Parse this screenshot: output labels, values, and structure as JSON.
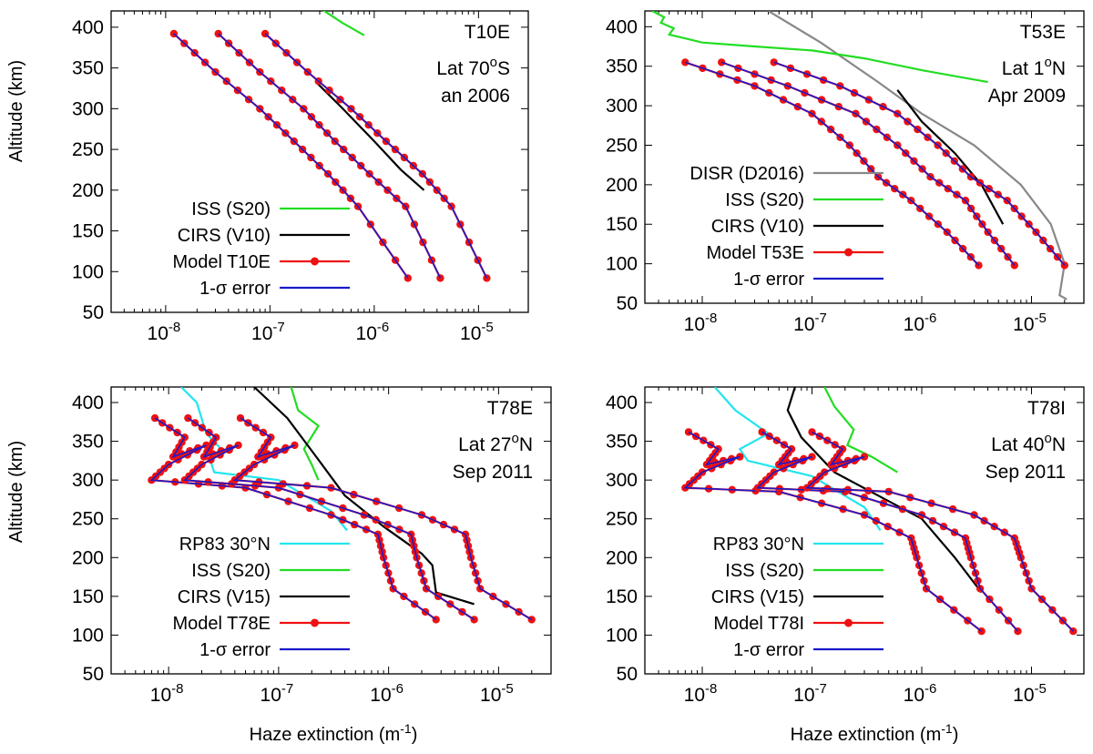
{
  "figure": {
    "ylabel": "Altitude (km)",
    "xlabel_main": "Haze extinction (m",
    "xlabel_sup": "-1",
    "xlabel_close": ")"
  },
  "colors": {
    "ISS": "#22dd22",
    "CIRS": "#000000",
    "DISR": "#888888",
    "RP83": "#22e5ee",
    "model": "#ee1111",
    "error": "#1a1acc"
  },
  "chart_data": [
    {
      "type": "line",
      "panel": "T10E",
      "title": "T10E",
      "annotation_lines": [
        {
          "main": "Lat 70",
          "sup": "o",
          "rest": "S"
        },
        {
          "main": "an 2006",
          "sup": "",
          "rest": ""
        }
      ],
      "xlabel": "",
      "ylabel": "Altitude (km)",
      "xscale": "log",
      "xlim": [
        3e-09,
        3e-05
      ],
      "ylim": [
        50,
        420
      ],
      "xticks": [
        {
          "base": "10",
          "exp": "-8"
        },
        {
          "base": "10",
          "exp": "-7"
        },
        {
          "base": "10",
          "exp": "-6"
        },
        {
          "base": "10",
          "exp": "-5"
        }
      ],
      "yticks": [
        "50",
        "100",
        "150",
        "200",
        "250",
        "300",
        "350",
        "400"
      ],
      "legend_position": "bottom-left",
      "legend": [
        {
          "label": "ISS (S20)",
          "color": "ISS",
          "marker": false
        },
        {
          "label": "CIRS (V10)",
          "color": "CIRS",
          "marker": false
        },
        {
          "label": "Model T10E",
          "color": "model",
          "marker": true
        },
        {
          "label": "1-σ error",
          "color": "error",
          "marker": false
        }
      ],
      "series": [
        {
          "color": "ISS",
          "kind": "line",
          "x": [
            2.9e-07,
            3.5e-07,
            5e-07,
            8e-07
          ],
          "y": [
            425,
            418,
            405,
            390
          ]
        },
        {
          "color": "CIRS",
          "kind": "line",
          "x": [
            2.8e-07,
            5e-07,
            1e-06,
            1.8e-06,
            3e-06
          ],
          "y": [
            332,
            300,
            260,
            225,
            200
          ]
        },
        {
          "color": "model",
          "kind": "model",
          "x": [
            1.2e-08,
            3e-08,
            8e-08,
            1.7e-07,
            3.6e-07,
            7e-07,
            2.1e-06
          ],
          "y": [
            392,
            345,
            300,
            260,
            220,
            180,
            92
          ]
        },
        {
          "color": "model",
          "kind": "model",
          "x": [
            3.2e-08,
            8e-08,
            2.1e-07,
            4.2e-07,
            9e-07,
            2e-06,
            4.3e-06
          ],
          "y": [
            392,
            345,
            300,
            260,
            220,
            180,
            92
          ]
        },
        {
          "color": "model",
          "kind": "model",
          "x": [
            9e-08,
            2.3e-07,
            6e-07,
            1.3e-06,
            2.9e-06,
            5.5e-06,
            1.2e-05
          ],
          "y": [
            392,
            345,
            300,
            260,
            220,
            180,
            92
          ]
        }
      ]
    },
    {
      "type": "line",
      "panel": "T53E",
      "title": "T53E",
      "annotation_lines": [
        {
          "main": "Lat 1",
          "sup": "o",
          "rest": "N"
        },
        {
          "main": "Apr 2009",
          "sup": "",
          "rest": ""
        }
      ],
      "xlabel": "",
      "ylabel": "",
      "xscale": "log",
      "xlim": [
        3e-09,
        3e-05
      ],
      "ylim": [
        50,
        420
      ],
      "xticks": [
        {
          "base": "10",
          "exp": "-8"
        },
        {
          "base": "10",
          "exp": "-7"
        },
        {
          "base": "10",
          "exp": "-6"
        },
        {
          "base": "10",
          "exp": "-5"
        }
      ],
      "yticks": [
        "50",
        "100",
        "150",
        "200",
        "250",
        "300",
        "350",
        "400"
      ],
      "legend_position": "bottom-left",
      "legend": [
        {
          "label": "DISR (D2016)",
          "color": "DISR",
          "marker": false
        },
        {
          "label": "ISS (S20)",
          "color": "ISS",
          "marker": false
        },
        {
          "label": "CIRS (V10)",
          "color": "CIRS",
          "marker": false
        },
        {
          "label": "Model T53E",
          "color": "model",
          "marker": true
        },
        {
          "label": "1-σ error",
          "color": "error",
          "marker": false
        }
      ],
      "series": [
        {
          "color": "DISR",
          "kind": "line",
          "x": [
            4e-08,
            1.2e-07,
            4e-07,
            1e-06,
            3e-06,
            8e-06,
            1.5e-05,
            2e-05,
            1.8e-05,
            2.1e-05
          ],
          "y": [
            420,
            380,
            330,
            290,
            250,
            200,
            150,
            100,
            60,
            55
          ]
        },
        {
          "color": "ISS",
          "kind": "line",
          "x": [
            3.5e-09,
            4.5e-09,
            4.2e-09,
            5.5e-09,
            5e-09,
            1e-08,
            3e-08,
            1e-07,
            3e-07,
            1e-06,
            4e-06
          ],
          "y": [
            420,
            412,
            405,
            398,
            390,
            380,
            375,
            370,
            360,
            345,
            330
          ]
        },
        {
          "color": "CIRS",
          "kind": "line",
          "x": [
            6e-07,
            1e-06,
            2e-06,
            3.5e-06,
            5.5e-06
          ],
          "y": [
            320,
            280,
            240,
            200,
            150
          ]
        },
        {
          "color": "model",
          "kind": "model",
          "x": [
            7e-09,
            3e-08,
            1e-07,
            2.2e-07,
            4e-07,
            8e-07,
            1.7e-06,
            3.3e-06
          ],
          "y": [
            355,
            325,
            290,
            250,
            210,
            180,
            140,
            98
          ]
        },
        {
          "color": "model",
          "kind": "model",
          "x": [
            1.5e-08,
            6e-08,
            2.5e-07,
            6e-07,
            1.2e-06,
            2.5e-06,
            4e-06,
            7e-06
          ],
          "y": [
            355,
            325,
            290,
            250,
            210,
            180,
            140,
            98
          ]
        },
        {
          "color": "model",
          "kind": "model",
          "x": [
            4.5e-08,
            1.8e-07,
            6e-07,
            1.4e-06,
            2.8e-06,
            6e-06,
            1.1e-05,
            2e-05
          ],
          "y": [
            355,
            325,
            290,
            250,
            210,
            180,
            140,
            98
          ]
        }
      ]
    },
    {
      "type": "line",
      "panel": "T78E",
      "title": "T78E",
      "annotation_lines": [
        {
          "main": "Lat 27",
          "sup": "o",
          "rest": "N"
        },
        {
          "main": "Sep 2011",
          "sup": "",
          "rest": ""
        }
      ],
      "xlabel": "Haze extinction (m-1)",
      "ylabel": "Altitude (km)",
      "xscale": "log",
      "xlim": [
        3e-09,
        3e-05
      ],
      "ylim": [
        50,
        420
      ],
      "xticks": [
        {
          "base": "10",
          "exp": "-8"
        },
        {
          "base": "10",
          "exp": "-7"
        },
        {
          "base": "10",
          "exp": "-6"
        },
        {
          "base": "10",
          "exp": "-5"
        }
      ],
      "yticks": [
        "50",
        "100",
        "150",
        "200",
        "250",
        "300",
        "350",
        "400"
      ],
      "legend_position": "bottom-left",
      "legend": [
        {
          "label": "RP83 30°N",
          "color": "RP83",
          "marker": false
        },
        {
          "label": "ISS (S20)",
          "color": "ISS",
          "marker": false
        },
        {
          "label": "CIRS (V15)",
          "color": "CIRS",
          "marker": false
        },
        {
          "label": "Model T78E",
          "color": "model",
          "marker": true
        },
        {
          "label": "1-σ error",
          "color": "error",
          "marker": false
        }
      ],
      "series": [
        {
          "color": "RP83",
          "kind": "line",
          "x": [
            1.3e-08,
            1.8e-08,
            2.2e-08,
            3e-08,
            2.4e-08,
            2.6e-08,
            1e-07,
            3e-07,
            4.2e-07
          ],
          "y": [
            420,
            400,
            360,
            340,
            325,
            310,
            300,
            260,
            235
          ]
        },
        {
          "color": "ISS",
          "kind": "line",
          "x": [
            1.3e-07,
            1.5e-07,
            2.3e-07,
            1.7e-07,
            2e-07,
            2.3e-07
          ],
          "y": [
            420,
            390,
            370,
            340,
            320,
            300
          ]
        },
        {
          "color": "CIRS",
          "kind": "line",
          "x": [
            6e-08,
            1.2e-07,
            2.2e-07,
            4e-07,
            9e-07,
            2e-06,
            2.5e-06,
            2.7e-06,
            6e-06
          ],
          "y": [
            420,
            380,
            330,
            280,
            240,
            205,
            190,
            155,
            140
          ]
        },
        {
          "color": "model",
          "kind": "model",
          "x": [
            7.5e-09,
            1.4e-08,
            1.1e-08,
            2.2e-08,
            1e-08,
            7e-09,
            5e-08,
            3e-07,
            8e-07,
            9e-07,
            1.1e-06,
            2.7e-06
          ],
          "y": [
            380,
            355,
            330,
            345,
            320,
            300,
            290,
            255,
            230,
            200,
            160,
            120
          ]
        },
        {
          "color": "model",
          "kind": "model",
          "x": [
            1.5e-08,
            2.7e-08,
            2.1e-08,
            4.3e-08,
            2e-08,
            1.4e-08,
            1e-07,
            6e-07,
            1.6e-06,
            1.8e-06,
            2.2e-06,
            6e-06
          ],
          "y": [
            380,
            355,
            330,
            345,
            320,
            300,
            290,
            255,
            230,
            200,
            160,
            120
          ]
        },
        {
          "color": "model",
          "kind": "model",
          "x": [
            4.5e-08,
            8.5e-08,
            6.5e-08,
            1.4e-07,
            6e-08,
            4e-08,
            3e-07,
            2e-06,
            5e-06,
            5.6e-06,
            6.8e-06,
            2e-05
          ],
          "y": [
            380,
            355,
            330,
            345,
            320,
            300,
            290,
            255,
            230,
            200,
            160,
            120
          ]
        }
      ]
    },
    {
      "type": "line",
      "panel": "T78I",
      "title": "T78I",
      "annotation_lines": [
        {
          "main": "Lat 40",
          "sup": "o",
          "rest": "N"
        },
        {
          "main": "Sep 2011",
          "sup": "",
          "rest": ""
        }
      ],
      "xlabel": "Haze extinction (m-1)",
      "ylabel": "",
      "xscale": "log",
      "xlim": [
        3e-09,
        3e-05
      ],
      "ylim": [
        50,
        420
      ],
      "xticks": [
        {
          "base": "10",
          "exp": "-8"
        },
        {
          "base": "10",
          "exp": "-7"
        },
        {
          "base": "10",
          "exp": "-6"
        },
        {
          "base": "10",
          "exp": "-5"
        }
      ],
      "yticks": [
        "50",
        "100",
        "150",
        "200",
        "250",
        "300",
        "350",
        "400"
      ],
      "legend_position": "bottom-left",
      "legend": [
        {
          "label": "RP83 30°N",
          "color": "RP83",
          "marker": false
        },
        {
          "label": "ISS (S20)",
          "color": "ISS",
          "marker": false
        },
        {
          "label": "CIRS (V15)",
          "color": "CIRS",
          "marker": false
        },
        {
          "label": "Model T78I",
          "color": "model",
          "marker": true
        },
        {
          "label": "1-σ error",
          "color": "error",
          "marker": false
        }
      ],
      "series": [
        {
          "color": "RP83",
          "kind": "line",
          "x": [
            1.3e-08,
            2e-08,
            4e-08,
            2.2e-08,
            2.6e-08,
            1e-07,
            3e-07,
            4.2e-07
          ],
          "y": [
            420,
            390,
            360,
            340,
            325,
            305,
            265,
            235
          ]
        },
        {
          "color": "ISS",
          "kind": "line",
          "x": [
            1.3e-07,
            1.6e-07,
            2.4e-07,
            2.1e-07,
            3.5e-07,
            6e-07
          ],
          "y": [
            420,
            395,
            365,
            345,
            330,
            310
          ]
        },
        {
          "color": "CIRS",
          "kind": "line",
          "x": [
            7e-08,
            6e-08,
            8e-08,
            1.6e-07,
            4e-07,
            1e-06,
            2e-06,
            3.5e-06
          ],
          "y": [
            420,
            390,
            355,
            310,
            280,
            250,
            200,
            155
          ]
        },
        {
          "color": "model",
          "kind": "model",
          "x": [
            7.5e-09,
            1.4e-08,
            1.1e-08,
            2.2e-08,
            1e-08,
            7e-09,
            5e-08,
            3e-07,
            8e-07,
            9e-07,
            1.1e-06,
            3.5e-06
          ],
          "y": [
            362,
            340,
            320,
            330,
            310,
            290,
            285,
            255,
            225,
            200,
            160,
            105
          ]
        },
        {
          "color": "model",
          "kind": "model",
          "x": [
            3.5e-08,
            6.5e-08,
            5e-08,
            1e-07,
            4.5e-08,
            3.2e-08,
            2e-07,
            1e-06,
            2.5e-06,
            2.8e-06,
            3.4e-06,
            7.5e-06
          ],
          "y": [
            362,
            340,
            320,
            330,
            310,
            290,
            285,
            255,
            225,
            200,
            160,
            105
          ]
        },
        {
          "color": "model",
          "kind": "model",
          "x": [
            1e-07,
            1.9e-07,
            1.5e-07,
            3e-07,
            1.3e-07,
            9e-08,
            5e-07,
            3e-06,
            7e-06,
            8e-06,
            1e-05,
            2.4e-05
          ],
          "y": [
            362,
            340,
            320,
            330,
            310,
            290,
            285,
            255,
            225,
            200,
            160,
            105
          ]
        }
      ]
    }
  ]
}
